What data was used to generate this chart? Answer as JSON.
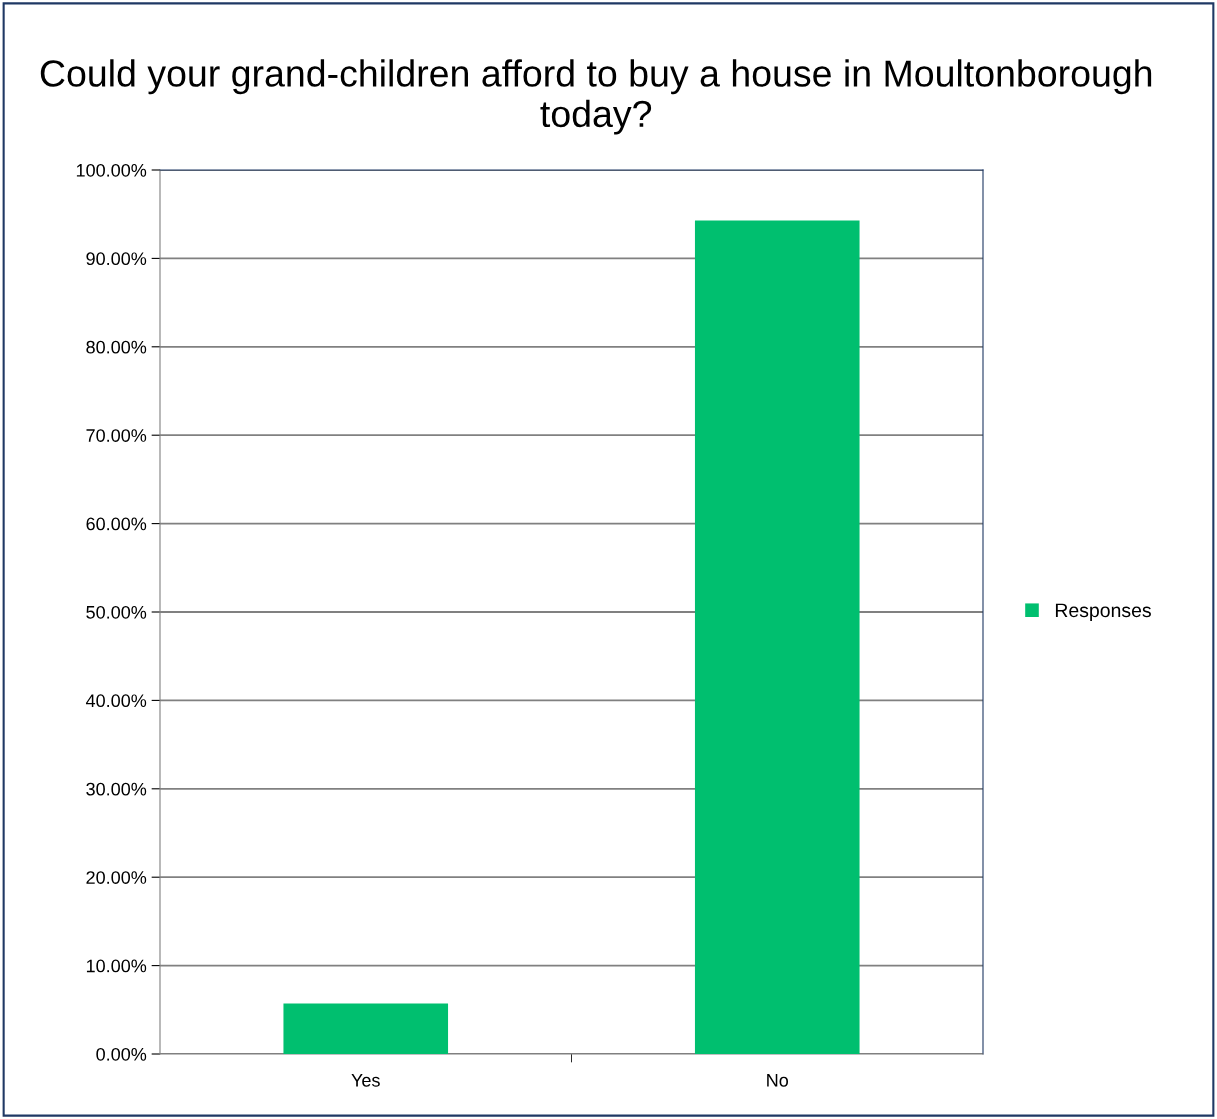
{
  "chart_data": {
    "type": "bar",
    "title": "Could your grand-children afford to buy a house in Moultonborough today?",
    "categories": [
      "Yes",
      "No"
    ],
    "series": [
      {
        "name": "Responses",
        "color": "#00bf6f",
        "values": [
          5.7,
          94.3
        ]
      }
    ],
    "ylim": [
      0,
      100
    ],
    "yticks": [
      {
        "value": 0,
        "label": "0.00%"
      },
      {
        "value": 10,
        "label": "10.00%"
      },
      {
        "value": 20,
        "label": "20.00%"
      },
      {
        "value": 30,
        "label": "30.00%"
      },
      {
        "value": 40,
        "label": "40.00%"
      },
      {
        "value": 50,
        "label": "50.00%"
      },
      {
        "value": 60,
        "label": "60.00%"
      },
      {
        "value": 70,
        "label": "70.00%"
      },
      {
        "value": 80,
        "label": "80.00%"
      },
      {
        "value": 90,
        "label": "90.00%"
      },
      {
        "value": 100,
        "label": "100.00%"
      }
    ],
    "grid": "y",
    "legend": "right"
  }
}
